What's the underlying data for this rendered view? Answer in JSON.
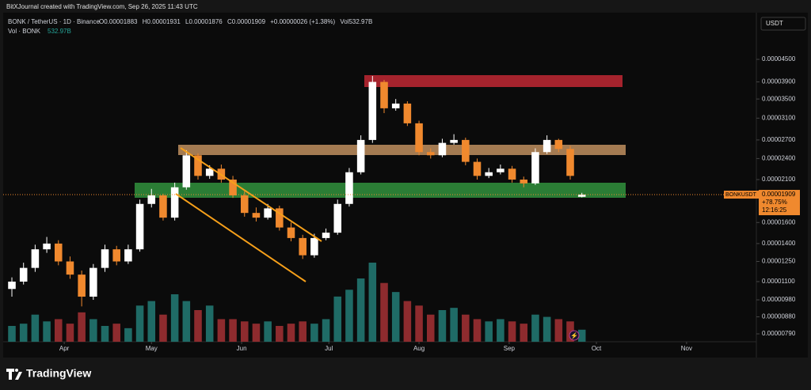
{
  "header": "BitXJournal created with TradingView.com, Sep 26, 2025 11:43 UTC",
  "chart_data": {
    "type": "candlestick",
    "symbol": "BONK / TetherUS · 1D · Binance",
    "ohlc_labels": [
      "O",
      "H",
      "L",
      "C"
    ],
    "change": "+0.00000026",
    "change_pct": "(+1.38%)",
    "vol_label": "Vol",
    "vol_value": "532.97B",
    "volume_title": "Vol · BONK",
    "ticker": "BONKUSDT",
    "performance": "+78.75%",
    "countdown": "12:16:25",
    "currency": "USDT",
    "up_color": "#ffffff",
    "down_color": "#f0892e",
    "volume_up_color": "#1f6b66",
    "volume_down_color": "#8e2b2e",
    "log_scale": true,
    "x": [
      "2025-03-14",
      "2025-03-18",
      "2025-03-22",
      "2025-03-26",
      "2025-03-30",
      "2025-04-03",
      "2025-04-07",
      "2025-04-11",
      "2025-04-15",
      "2025-04-19",
      "2025-04-23",
      "2025-04-27",
      "2025-05-01",
      "2025-05-05",
      "2025-05-09",
      "2025-05-13",
      "2025-05-17",
      "2025-05-21",
      "2025-05-25",
      "2025-05-29",
      "2025-06-02",
      "2025-06-06",
      "2025-06-10",
      "2025-06-14",
      "2025-06-18",
      "2025-06-22",
      "2025-06-26",
      "2025-06-30",
      "2025-07-04",
      "2025-07-08",
      "2025-07-12",
      "2025-07-16",
      "2025-07-20",
      "2025-07-24",
      "2025-07-28",
      "2025-08-01",
      "2025-08-05",
      "2025-08-09",
      "2025-08-13",
      "2025-08-17",
      "2025-08-21",
      "2025-08-25",
      "2025-08-29",
      "2025-09-02",
      "2025-09-06",
      "2025-09-10",
      "2025-09-14",
      "2025-09-18",
      "2025-09-22",
      "2025-09-26"
    ],
    "open": [
      1.05e-05,
      1.1e-05,
      1.2e-05,
      1.35e-05,
      1.4e-05,
      1.25e-05,
      1.15e-05,
      1e-05,
      1.2e-05,
      1.35e-05,
      1.25e-05,
      1.35e-05,
      1.8e-05,
      1.9e-05,
      1.65e-05,
      2e-05,
      2.45e-05,
      2.15e-05,
      2.25e-05,
      2.1e-05,
      1.9e-05,
      1.7e-05,
      1.65e-05,
      1.75e-05,
      1.55e-05,
      1.45e-05,
      1.3e-05,
      1.45e-05,
      1.5e-05,
      1.8e-05,
      2.2e-05,
      2.7e-05,
      3.9e-05,
      3.3e-05,
      3.4e-05,
      3e-05,
      2.5e-05,
      2.45e-05,
      2.65e-05,
      2.7e-05,
      2.35e-05,
      2.15e-05,
      2.2e-05,
      2.25e-05,
      2.1e-05,
      2.05e-05,
      2.5e-05,
      2.7e-05,
      2.55e-05,
      1.883e-05
    ],
    "high": [
      1.13e-05,
      1.24e-05,
      1.39e-05,
      1.46e-05,
      1.43e-05,
      1.29e-05,
      1.18e-05,
      1.23e-05,
      1.39e-05,
      1.38e-05,
      1.39e-05,
      1.85e-05,
      1.98e-05,
      1.92e-05,
      2.06e-05,
      2.53e-05,
      2.48e-05,
      2.3e-05,
      2.31e-05,
      2.15e-05,
      1.95e-05,
      1.76e-05,
      1.8e-05,
      1.78e-05,
      1.6e-05,
      1.48e-05,
      1.49e-05,
      1.54e-05,
      1.85e-05,
      2.26e-05,
      2.78e-05,
      4.05e-05,
      3.95e-05,
      3.5e-05,
      3.45e-05,
      3.05e-05,
      2.56e-05,
      2.72e-05,
      2.8e-05,
      2.74e-05,
      2.4e-05,
      2.26e-05,
      2.31e-05,
      2.29e-05,
      2.14e-05,
      2.56e-05,
      2.78e-05,
      2.72e-05,
      2.6e-05,
      1.931e-05
    ],
    "low": [
      1e-05,
      1.08e-05,
      1.17e-05,
      1.32e-05,
      1.22e-05,
      1.12e-05,
      9.4e-06,
      9.8e-06,
      1.17e-05,
      1.22e-05,
      1.23e-05,
      1.33e-05,
      1.76e-05,
      1.62e-05,
      1.62e-05,
      1.97e-05,
      2.1e-05,
      2.11e-05,
      2.06e-05,
      1.87e-05,
      1.66e-05,
      1.61e-05,
      1.63e-05,
      1.52e-05,
      1.42e-05,
      1.27e-05,
      1.28e-05,
      1.43e-05,
      1.48e-05,
      1.77e-05,
      2.17e-05,
      2.65e-05,
      3.2e-05,
      3.25e-05,
      2.95e-05,
      2.45e-05,
      2.4e-05,
      2.42e-05,
      2.62e-05,
      2.3e-05,
      2.1e-05,
      2.12e-05,
      2.17e-05,
      2.06e-05,
      2e-05,
      2.03e-05,
      2.47e-05,
      2.5e-05,
      2.1e-05,
      1.876e-05
    ],
    "close": [
      1.1e-05,
      1.2e-05,
      1.35e-05,
      1.4e-05,
      1.25e-05,
      1.15e-05,
      1e-05,
      1.2e-05,
      1.35e-05,
      1.25e-05,
      1.35e-05,
      1.8e-05,
      1.9e-05,
      1.65e-05,
      2e-05,
      2.45e-05,
      2.15e-05,
      2.25e-05,
      2.1e-05,
      1.9e-05,
      1.7e-05,
      1.65e-05,
      1.75e-05,
      1.55e-05,
      1.45e-05,
      1.3e-05,
      1.45e-05,
      1.5e-05,
      1.8e-05,
      2.2e-05,
      2.7e-05,
      3.9e-05,
      3.3e-05,
      3.4e-05,
      3e-05,
      2.5e-05,
      2.45e-05,
      2.65e-05,
      2.7e-05,
      2.35e-05,
      2.15e-05,
      2.2e-05,
      2.25e-05,
      2.1e-05,
      2.05e-05,
      2.5e-05,
      2.7e-05,
      2.55e-05,
      2.15e-05,
      1.909e-05
    ],
    "volume": [
      700000000000.0,
      800000000000.0,
      1200000000000.0,
      900000000000.0,
      1000000000000.0,
      800000000000.0,
      1300000000000.0,
      1000000000000.0,
      700000000000.0,
      800000000000.0,
      600000000000.0,
      1600000000000.0,
      1800000000000.0,
      1200000000000.0,
      2100000000000.0,
      1800000000000.0,
      1400000000000.0,
      1600000000000.0,
      1000000000000.0,
      1000000000000.0,
      900000000000.0,
      800000000000.0,
      900000000000.0,
      700000000000.0,
      800000000000.0,
      900000000000.0,
      800000000000.0,
      1000000000000.0,
      2000000000000.0,
      2300000000000.0,
      2800000000000.0,
      3500000000000.0,
      2600000000000.0,
      2200000000000.0,
      1800000000000.0,
      1600000000000.0,
      1200000000000.0,
      1400000000000.0,
      1500000000000.0,
      1200000000000.0,
      1000000000000.0,
      900000000000.0,
      1000000000000.0,
      900000000000.0,
      800000000000.0,
      1200000000000.0,
      1100000000000.0,
      1000000000000.0,
      900000000000.0,
      532970000000.0
    ],
    "volume_ylim": [
      0,
      3500000000000.0
    ],
    "ylim": [
      7.59e-06,
      6.08e-05
    ],
    "yticks": [
      {
        "value": 4.5e-05,
        "label": "0.00004500"
      },
      {
        "value": 3.9e-05,
        "label": "0.00003900"
      },
      {
        "value": 3.5e-05,
        "label": "0.00003500"
      },
      {
        "value": 3.1e-05,
        "label": "0.00003100"
      },
      {
        "value": 2.7e-05,
        "label": "0.00002700"
      },
      {
        "value": 2.4e-05,
        "label": "0.00002400"
      },
      {
        "value": 2.1e-05,
        "label": "0.00002100"
      },
      {
        "value": 1.6e-05,
        "label": "0.00001600"
      },
      {
        "value": 1.4e-05,
        "label": "0.00001400"
      },
      {
        "value": 1.25e-05,
        "label": "0.00001250"
      },
      {
        "value": 1.1e-05,
        "label": "0.00001100"
      },
      {
        "value": 9.8e-06,
        "label": "0.00000980"
      },
      {
        "value": 8.8e-06,
        "label": "0.00000880"
      },
      {
        "value": 7.9e-06,
        "label": "0.00000790"
      }
    ],
    "xlim": [
      "2025-03-11",
      "2025-11-25"
    ],
    "xticks": [
      {
        "value": "2025-04-01",
        "label": "Apr"
      },
      {
        "value": "2025-05-01",
        "label": "May"
      },
      {
        "value": "2025-06-01",
        "label": "Jun"
      },
      {
        "value": "2025-07-01",
        "label": "Jul"
      },
      {
        "value": "2025-08-01",
        "label": "Aug"
      },
      {
        "value": "2025-09-01",
        "label": "Sep"
      },
      {
        "value": "2025-10-01",
        "label": "Oct"
      },
      {
        "value": "2025-11-01",
        "label": "Nov"
      }
    ]
  },
  "footer": "TradingView"
}
